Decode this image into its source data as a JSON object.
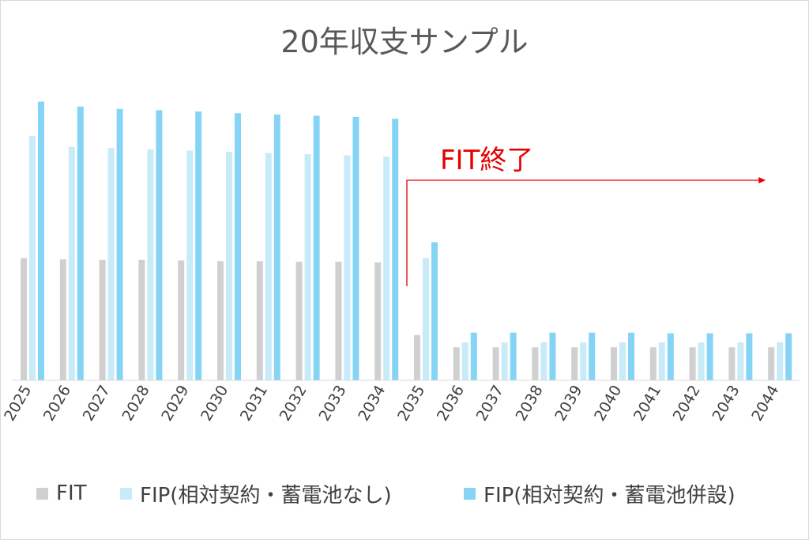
{
  "chart_data": {
    "type": "bar",
    "title": "20年収支サンプル",
    "categories": [
      "2025",
      "2026",
      "2027",
      "2028",
      "2029",
      "2030",
      "2031",
      "2032",
      "2033",
      "2034",
      "2035",
      "2036",
      "2037",
      "2038",
      "2039",
      "2040",
      "2041",
      "2042",
      "2043",
      "2044"
    ],
    "series": [
      {
        "name": "FIT",
        "color": "#d0d0d0",
        "values": [
          100,
          99,
          98.5,
          98.5,
          98,
          97.5,
          97.5,
          97,
          97,
          96.5,
          37,
          27,
          27,
          27,
          27,
          27,
          27,
          27,
          27,
          27
        ]
      },
      {
        "name": "FIP(相対契約・蓄電池なし)",
        "color": "#c8ebfa",
        "values": [
          200,
          191,
          190,
          189,
          188,
          187,
          186,
          185,
          184,
          183,
          100,
          31,
          31,
          31,
          31,
          31,
          31,
          31,
          31,
          31
        ]
      },
      {
        "name": "FIP(相対契約・蓄電池併設)",
        "color": "#85d4f5",
        "values": [
          228,
          224,
          222,
          221,
          220,
          218.5,
          217.5,
          216.5,
          215.5,
          214,
          113,
          39,
          39,
          39,
          39,
          39,
          38.5,
          38.5,
          38.5,
          38.5
        ]
      }
    ],
    "ylim": [
      0,
      240
    ],
    "grid": false,
    "legend": "bottom",
    "annotation": {
      "text": "FIT終了",
      "color": "#e60000",
      "from_category": "2035",
      "to_category": "2044"
    }
  }
}
